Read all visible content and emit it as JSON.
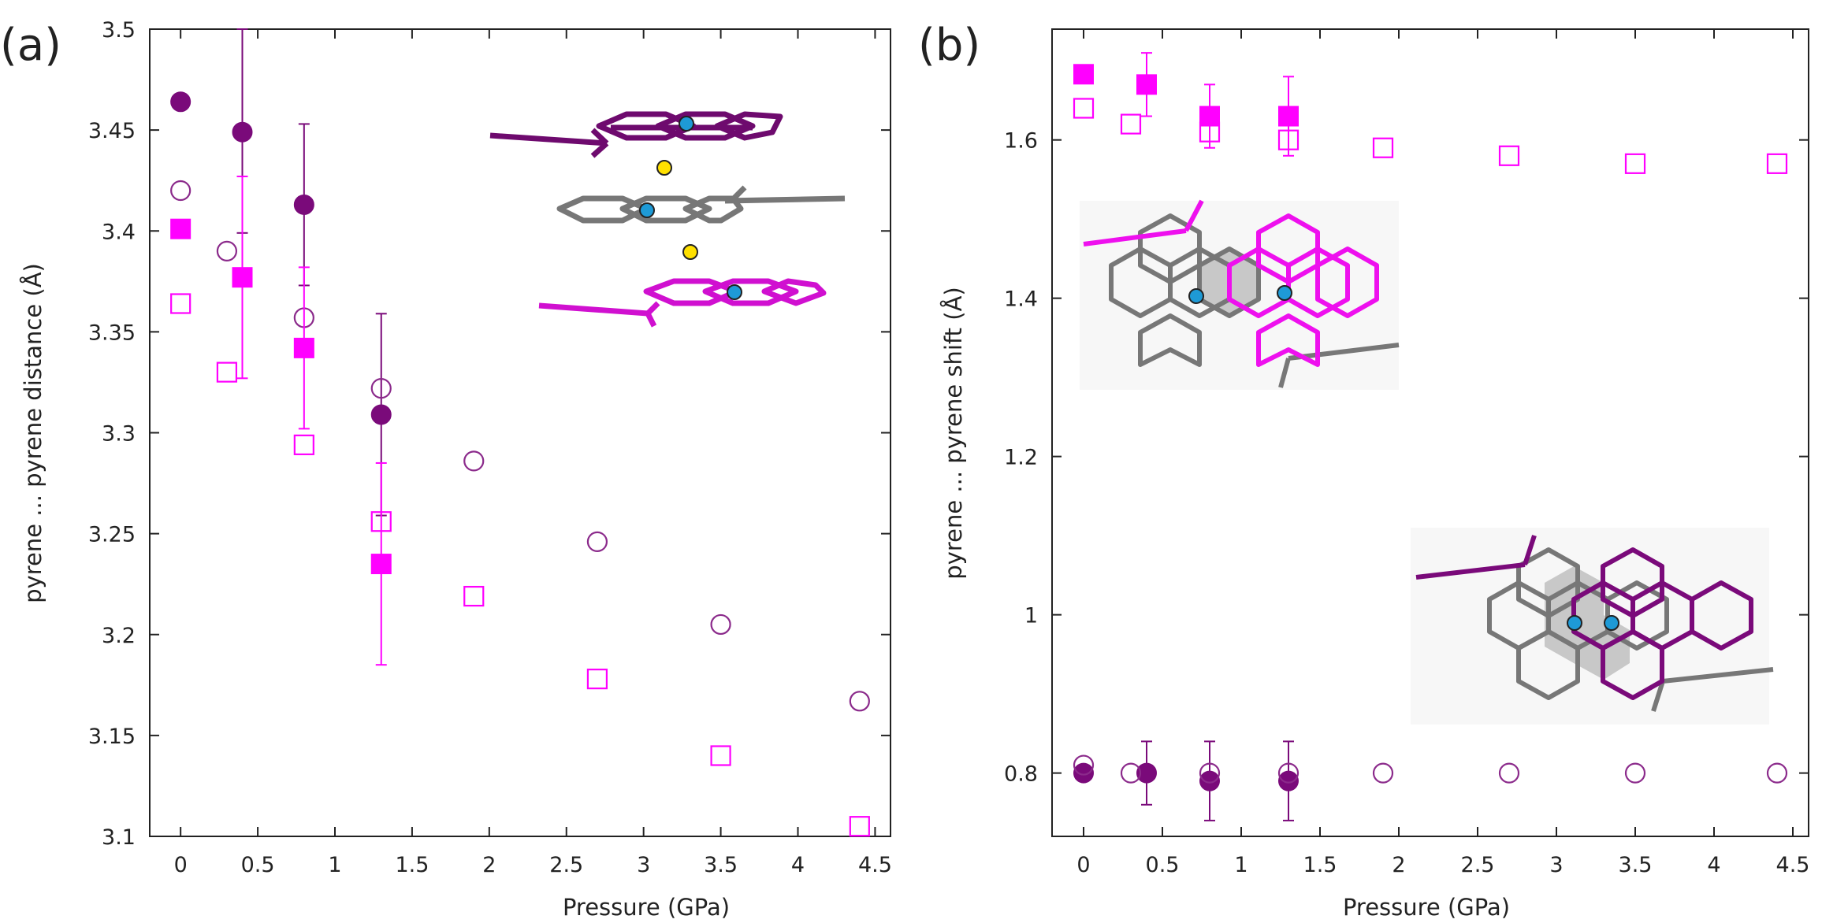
{
  "chart_data": [
    {
      "panel_label": "(a)",
      "type": "scatter",
      "xlabel": "Pressure (GPa)",
      "ylabel": "pyrene ... pyrene distance (Å)",
      "xlim": [
        -0.2,
        4.6
      ],
      "ylim": [
        3.1,
        3.5
      ],
      "xticks": [
        0,
        0.5,
        1,
        1.5,
        2,
        2.5,
        3,
        3.5,
        4,
        4.5
      ],
      "yticks": [
        3.1,
        3.15,
        3.2,
        3.25,
        3.3,
        3.35,
        3.4,
        3.45,
        3.5
      ],
      "grid": false,
      "series": [
        {
          "marker": "filled-circle",
          "color": "#7a0a7a",
          "points": [
            {
              "x": 0,
              "y": 3.464
            },
            {
              "x": 0.4,
              "y": 3.449,
              "ylo": 3.399,
              "yhi": 3.5
            },
            {
              "x": 0.8,
              "y": 3.413,
              "ylo": 3.373,
              "yhi": 3.453
            },
            {
              "x": 1.3,
              "y": 3.309,
              "ylo": 3.259,
              "yhi": 3.359
            }
          ]
        },
        {
          "marker": "open-circle",
          "color": "#8b2a8b",
          "points": [
            {
              "x": 0,
              "y": 3.42
            },
            {
              "x": 0.3,
              "y": 3.39
            },
            {
              "x": 0.8,
              "y": 3.357
            },
            {
              "x": 1.3,
              "y": 3.322
            },
            {
              "x": 1.9,
              "y": 3.286
            },
            {
              "x": 2.7,
              "y": 3.246
            },
            {
              "x": 3.5,
              "y": 3.205
            },
            {
              "x": 4.4,
              "y": 3.167
            }
          ]
        },
        {
          "marker": "filled-square",
          "color": "#ff00ff",
          "points": [
            {
              "x": 0,
              "y": 3.401
            },
            {
              "x": 0.4,
              "y": 3.377,
              "ylo": 3.327,
              "yhi": 3.427
            },
            {
              "x": 0.8,
              "y": 3.342,
              "ylo": 3.302,
              "yhi": 3.382
            },
            {
              "x": 1.3,
              "y": 3.235,
              "ylo": 3.185,
              "yhi": 3.285
            }
          ]
        },
        {
          "marker": "open-square",
          "color": "#ff00ff",
          "points": [
            {
              "x": 0,
              "y": 3.364
            },
            {
              "x": 0.3,
              "y": 3.33
            },
            {
              "x": 0.8,
              "y": 3.294
            },
            {
              "x": 1.3,
              "y": 3.256
            },
            {
              "x": 1.9,
              "y": 3.219
            },
            {
              "x": 2.7,
              "y": 3.178
            },
            {
              "x": 3.5,
              "y": 3.14
            },
            {
              "x": 4.4,
              "y": 3.105
            }
          ]
        }
      ]
    },
    {
      "panel_label": "(b)",
      "type": "scatter",
      "xlabel": "Pressure (GPa)",
      "ylabel": "pyrene ... pyrene shift (Å)",
      "xlim": [
        -0.2,
        4.6
      ],
      "ylim": [
        0.72,
        1.74
      ],
      "xticks": [
        0,
        0.5,
        1,
        1.5,
        2,
        2.5,
        3,
        3.5,
        4,
        4.5
      ],
      "yticks": [
        0.8,
        1,
        1.2,
        1.4,
        1.6
      ],
      "grid": false,
      "series": [
        {
          "marker": "filled-square",
          "color": "#ff00ff",
          "points": [
            {
              "x": 0,
              "y": 1.683
            },
            {
              "x": 0.4,
              "y": 1.67,
              "ylo": 1.63,
              "yhi": 1.71
            },
            {
              "x": 0.8,
              "y": 1.63,
              "ylo": 1.59,
              "yhi": 1.67
            },
            {
              "x": 1.3,
              "y": 1.63,
              "ylo": 1.58,
              "yhi": 1.68
            }
          ]
        },
        {
          "marker": "open-square",
          "color": "#ff00ff",
          "points": [
            {
              "x": 0,
              "y": 1.64
            },
            {
              "x": 0.3,
              "y": 1.62
            },
            {
              "x": 0.8,
              "y": 1.61
            },
            {
              "x": 1.3,
              "y": 1.6
            },
            {
              "x": 1.9,
              "y": 1.59
            },
            {
              "x": 2.7,
              "y": 1.58
            },
            {
              "x": 3.5,
              "y": 1.57
            },
            {
              "x": 4.4,
              "y": 1.57
            }
          ]
        },
        {
          "marker": "filled-circle",
          "color": "#7a0a7a",
          "points": [
            {
              "x": 0,
              "y": 0.8
            },
            {
              "x": 0.4,
              "y": 0.8,
              "ylo": 0.76,
              "yhi": 0.84
            },
            {
              "x": 0.8,
              "y": 0.79,
              "ylo": 0.74,
              "yhi": 0.84
            },
            {
              "x": 1.3,
              "y": 0.79,
              "ylo": 0.74,
              "yhi": 0.84
            }
          ]
        },
        {
          "marker": "open-circle",
          "color": "#8b2a8b",
          "points": [
            {
              "x": 0,
              "y": 0.81
            },
            {
              "x": 0.3,
              "y": 0.8
            },
            {
              "x": 0.8,
              "y": 0.8
            },
            {
              "x": 1.3,
              "y": 0.8
            },
            {
              "x": 1.9,
              "y": 0.8
            },
            {
              "x": 2.7,
              "y": 0.8
            },
            {
              "x": 3.5,
              "y": 0.8
            },
            {
              "x": 4.4,
              "y": 0.8
            }
          ]
        }
      ]
    }
  ],
  "colors": {
    "dark_purple": "#7a0a7a",
    "magenta": "#ff00ff",
    "gray": "#7a7a7a",
    "atom_blue": "#1e9ad6",
    "atom_yellow": "#ffe000"
  }
}
